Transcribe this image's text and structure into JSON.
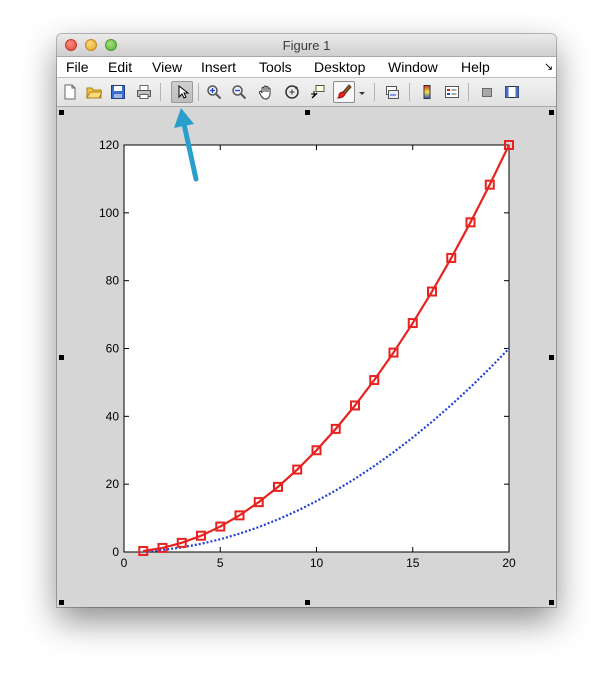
{
  "window": {
    "title": "Figure 1"
  },
  "menu": {
    "items": [
      "File",
      "Edit",
      "View",
      "Insert",
      "Tools",
      "Desktop",
      "Window",
      "Help"
    ],
    "overflow": "↘"
  },
  "toolbar": {
    "buttons": [
      {
        "name": "new-figure-icon"
      },
      {
        "name": "open-file-icon"
      },
      {
        "name": "save-icon"
      },
      {
        "name": "print-icon"
      },
      {
        "name": "edit-plot-pointer-icon",
        "active": true
      },
      {
        "name": "zoom-in-icon"
      },
      {
        "name": "zoom-out-icon"
      },
      {
        "name": "pan-hand-icon"
      },
      {
        "name": "rotate-3d-icon"
      },
      {
        "name": "data-cursor-icon"
      },
      {
        "name": "brush-icon"
      },
      {
        "name": "dropdown-arrow-icon"
      },
      {
        "name": "link-plot-icon"
      },
      {
        "name": "colorbar-icon"
      },
      {
        "name": "legend-icon"
      },
      {
        "name": "hide-plot-tools-icon"
      },
      {
        "name": "show-plot-tools-icon"
      }
    ]
  },
  "colors": {
    "series_red": "#e8231f",
    "series_blue": "#1f3fd8",
    "callout_arrow": "#2a9fcb",
    "figure_bg": "#d6d6d6"
  },
  "chart_data": {
    "type": "line",
    "title": "",
    "xlabel": "",
    "ylabel": "",
    "xlim": [
      0,
      20
    ],
    "ylim": [
      0,
      120
    ],
    "xticks": [
      0,
      5,
      10,
      15,
      20
    ],
    "yticks": [
      0,
      20,
      40,
      60,
      80,
      100,
      120
    ],
    "grid": false,
    "series": [
      {
        "style": "solid line with square markers",
        "color": "#e8231f",
        "x": [
          1,
          2,
          3,
          4,
          5,
          6,
          7,
          8,
          9,
          10,
          11,
          12,
          13,
          14,
          15,
          16,
          17,
          18,
          19,
          20
        ],
        "y": [
          0.3,
          1.2,
          2.7,
          4.8,
          7.5,
          10.8,
          14.7,
          19.2,
          24.3,
          30.0,
          36.3,
          43.2,
          50.7,
          58.8,
          67.5,
          76.8,
          86.7,
          97.2,
          108.3,
          120.0
        ]
      },
      {
        "style": "dotted line",
        "color": "#1f3fd8",
        "x": [
          1,
          2,
          3,
          4,
          5,
          6,
          7,
          8,
          9,
          10,
          11,
          12,
          13,
          14,
          15,
          16,
          17,
          18,
          19,
          20
        ],
        "y": [
          0.15,
          0.6,
          1.35,
          2.4,
          3.75,
          5.4,
          7.35,
          9.6,
          12.15,
          15.0,
          18.15,
          21.6,
          25.35,
          29.4,
          33.75,
          38.4,
          43.35,
          48.6,
          54.15,
          60.0
        ]
      }
    ]
  }
}
